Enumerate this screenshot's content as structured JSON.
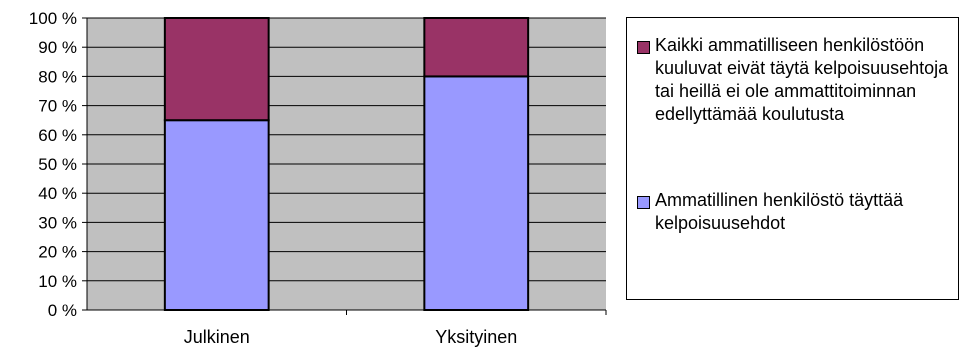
{
  "chart_data": {
    "type": "bar",
    "stacked": true,
    "categories": [
      "Julkinen",
      "Yksityinen"
    ],
    "series": [
      {
        "name": "Ammatillinen henkilöstö täyttää kelpoisuusehdot",
        "color": "#9999ff",
        "values": [
          65,
          80
        ]
      },
      {
        "name": "Kaikki ammatilliseen henkilöstöön kuuluvat eivät täytä kelpoisuusehtoja tai heillä ei ole ammattitoiminnan edellyttämää koulutusta",
        "color": "#993366",
        "values": [
          35,
          20
        ]
      }
    ],
    "y_ticks": [
      "0 %",
      "10 %",
      "20 %",
      "30 %",
      "40 %",
      "50 %",
      "60 %",
      "70 %",
      "80 %",
      "90 %",
      "100 %"
    ],
    "ylim": [
      0,
      100
    ],
    "grid": true,
    "plot_background": "#c0c0c0",
    "legend_position": "right"
  }
}
